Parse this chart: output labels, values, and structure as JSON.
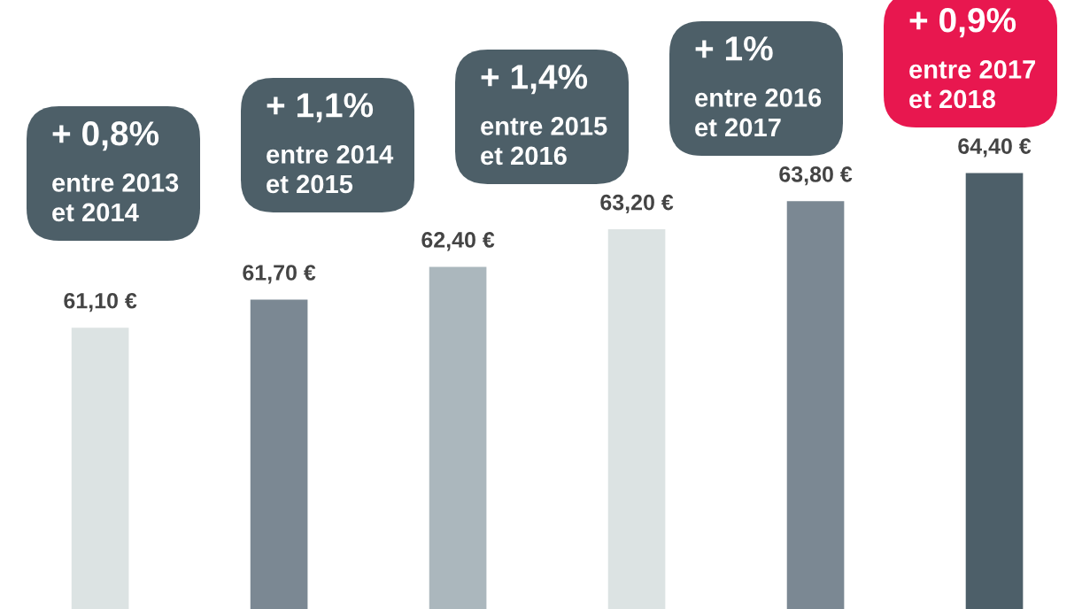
{
  "chart_data": {
    "type": "bar",
    "categories": [
      null,
      null,
      null,
      null,
      null,
      null
    ],
    "values": [
      61.1,
      61.7,
      62.4,
      63.2,
      63.8,
      64.4
    ],
    "colors": [
      "#dce3e3",
      "#7b8893",
      "#abb7bd",
      "#dce3e3",
      "#7b8893",
      "#4d5f69"
    ],
    "value_labels": [
      "61,10 €",
      "61,70 €",
      "62,40 €",
      "63,20 €",
      "63,80 €",
      "64,40 €"
    ],
    "annotations": [
      "+ 0,8%\nentre 2013\net 2014",
      "+ 1,1%\nentre 2014\net 2015",
      "+ 1,4%\nentre 2015\net 2016",
      "+ 1%\nentre 2016\net 2017",
      "+ 0,9%\nentre 2017\net 2018"
    ]
  }
}
